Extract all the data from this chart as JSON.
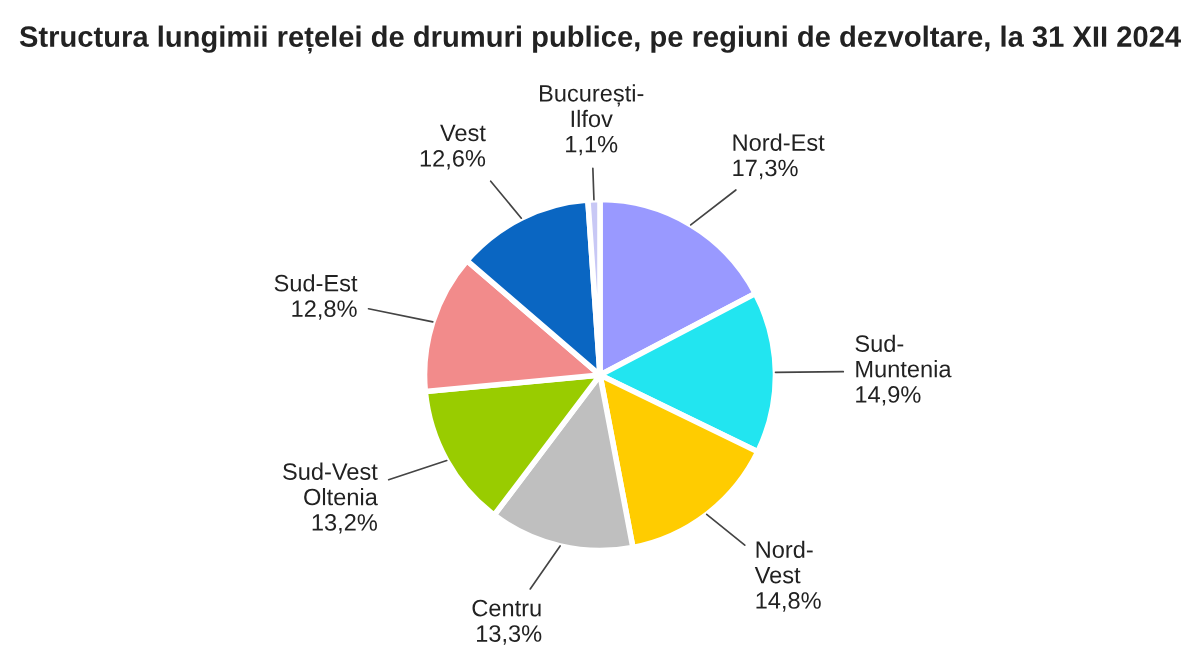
{
  "chart_data": {
    "type": "pie",
    "title": "Structura lungimii rețelei de drumuri publice, pe regiuni de dezvoltare, la 31 XII 2024",
    "categories": [
      "Nord-Est",
      "Sud-\nMuntenia",
      "Nord-\nVest",
      "Centru",
      "Sud-Vest\nOltenia",
      "Sud-Est",
      "Vest",
      "București-\nIlfov"
    ],
    "values": [
      17.3,
      14.9,
      14.8,
      13.3,
      13.2,
      12.8,
      12.6,
      1.1
    ],
    "value_labels": [
      "17,3%",
      "14,9%",
      "14,8%",
      "13,3%",
      "13,2%",
      "12,8%",
      "12,6%",
      "1,1%"
    ],
    "colors": [
      "#9999ff",
      "#22e5f0",
      "#ffcc00",
      "#bfbfbf",
      "#99cc00",
      "#f28b8b",
      "#0a66c2",
      "#c8c8f5"
    ]
  }
}
